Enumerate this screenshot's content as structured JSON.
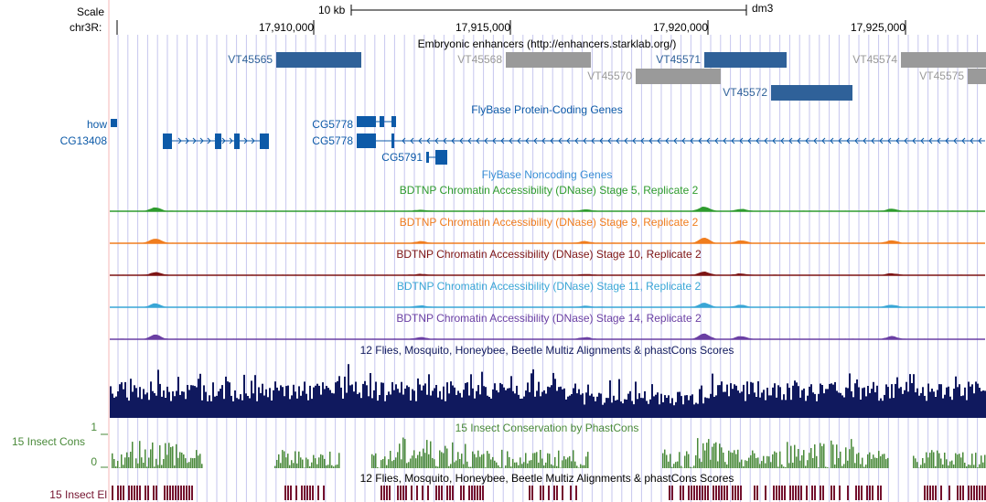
{
  "ruler": {
    "scale_label": "Scale",
    "chrom_label": "chr3R:",
    "scale_text": "10 kb",
    "assembly": "dm3",
    "positions": [
      "17,910,000",
      "17,915,000",
      "17,920,000",
      "17,925,000"
    ]
  },
  "tracks": {
    "enhancers_title": "Embryonic enhancers (http://enhancers.starklab.org/)",
    "enhancers": [
      "VT45565",
      "VT45568",
      "VT45570",
      "VT45571",
      "VT45572",
      "VT45574",
      "VT45575"
    ],
    "genes_title": "FlyBase Protein-Coding Genes",
    "gene_side_labels": [
      "how",
      "CG13408"
    ],
    "gene_labels": [
      "CG5778",
      "CG5778",
      "CG5791"
    ],
    "noncoding_title": "FlyBase Noncoding Genes",
    "dnase": [
      {
        "title": "BDTNP Chromatin Accessibility (DNase) Stage 5, Replicate 2",
        "color": "#2e9b2e"
      },
      {
        "title": "BDTNP Chromatin Accessibility (DNase) Stage 9, Replicate 2",
        "color": "#f07d1e"
      },
      {
        "title": "BDTNP Chromatin Accessibility (DNase) Stage 10, Replicate 2",
        "color": "#7d1414"
      },
      {
        "title": "BDTNP Chromatin Accessibility (DNase) Stage 11, Replicate 2",
        "color": "#39a6d6"
      },
      {
        "title": "BDTNP Chromatin Accessibility (DNase) Stage 14, Replicate 2",
        "color": "#6a3fa3"
      }
    ],
    "multiz_title": "12 Flies, Mosquito, Honeybee, Beetle Multiz Alignments & phastCons Scores",
    "cons_title": "15 Insect Conservation by PhastCons",
    "cons_side_label": "15 Insect Cons",
    "cons_max": "1",
    "cons_min": "0",
    "elements_title": "12 Flies, Mosquito, Honeybee, Beetle Multiz Alignments & phastCons Scores",
    "elements_side_label": "15 Insect El"
  },
  "colors": {
    "enhancer_active": "#2f6199",
    "enhancer_inactive": "#9a9a9a",
    "gene": "#0d5aa8",
    "multiz": "#10195e",
    "cons": "#4a8a3a",
    "elements": "#74112e",
    "grid": "#c6c6ee",
    "side_line": "#f6b7b7"
  }
}
